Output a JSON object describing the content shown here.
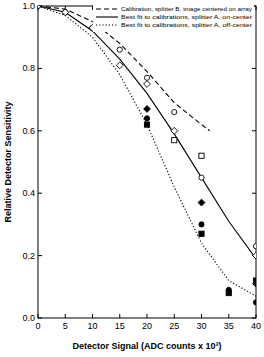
{
  "chart_data": {
    "type": "line",
    "x_label": "Detector Signal (ADC counts x 10³)",
    "y_label": "Relative Detector Sensitivity",
    "xlim": [
      0,
      40
    ],
    "ylim": [
      0,
      1
    ],
    "xticks": [
      0,
      5,
      10,
      15,
      20,
      25,
      30,
      35,
      40
    ],
    "yticks": [
      {
        "value": 0,
        "label": "0.0"
      },
      0.2,
      0.4,
      0.6,
      0.8,
      {
        "value": 1,
        "label": "1.0"
      }
    ],
    "legend": "top-right",
    "series": [
      {
        "name": "Calibration, splitter B, image centered on array",
        "type": "line",
        "line_style": "dashed",
        "color": "#000000",
        "x": [
          0,
          5,
          10,
          15,
          20,
          25,
          30,
          31.5
        ],
        "values": [
          1.0,
          0.99,
          0.95,
          0.88,
          0.79,
          0.69,
          0.62,
          0.6
        ]
      },
      {
        "name": "Best fit to calibrations, splitter A, on-center",
        "type": "line",
        "line_style": "solid",
        "color": "#000000",
        "x": [
          0,
          5,
          10,
          15,
          20,
          25,
          30,
          35,
          40
        ],
        "values": [
          1.0,
          0.98,
          0.92,
          0.83,
          0.72,
          0.59,
          0.45,
          0.31,
          0.19
        ]
      },
      {
        "name": "Best fit to calibrations, splitter A, off-center",
        "type": "line",
        "line_style": "dotted",
        "color": "#000000",
        "x": [
          0,
          5,
          10,
          15,
          20,
          25,
          30,
          35,
          40
        ],
        "values": [
          1.0,
          0.97,
          0.9,
          0.78,
          0.62,
          0.42,
          0.24,
          0.12,
          0.07
        ]
      },
      {
        "type": "scatter",
        "marker": "open-circle",
        "color": "#000000",
        "x": [
          0,
          5,
          10,
          15,
          20,
          25,
          30,
          40
        ],
        "values": [
          1.0,
          0.98,
          0.93,
          0.86,
          0.77,
          0.66,
          0.45,
          0.23
        ]
      },
      {
        "type": "scatter",
        "marker": "open-diamond",
        "color": "#000000",
        "x": [
          5,
          10,
          15,
          20,
          25,
          40
        ],
        "values": [
          0.98,
          0.93,
          0.81,
          0.75,
          0.6,
          0.2
        ]
      },
      {
        "type": "scatter",
        "marker": "open-square",
        "color": "#000000",
        "x": [
          25,
          30
        ],
        "values": [
          0.57,
          0.52
        ]
      },
      {
        "type": "scatter",
        "marker": "filled-diamond",
        "color": "#000000",
        "x": [
          20,
          30,
          40
        ],
        "values": [
          0.67,
          0.37,
          0.11
        ]
      },
      {
        "type": "scatter",
        "marker": "filled-circle",
        "color": "#000000",
        "x": [
          20,
          30,
          35,
          40
        ],
        "values": [
          0.64,
          0.3,
          0.09,
          0.05
        ]
      },
      {
        "type": "scatter",
        "marker": "filled-square",
        "color": "#000000",
        "x": [
          20,
          30,
          35,
          40
        ],
        "values": [
          0.62,
          0.27,
          0.08,
          0.12
        ]
      }
    ]
  }
}
